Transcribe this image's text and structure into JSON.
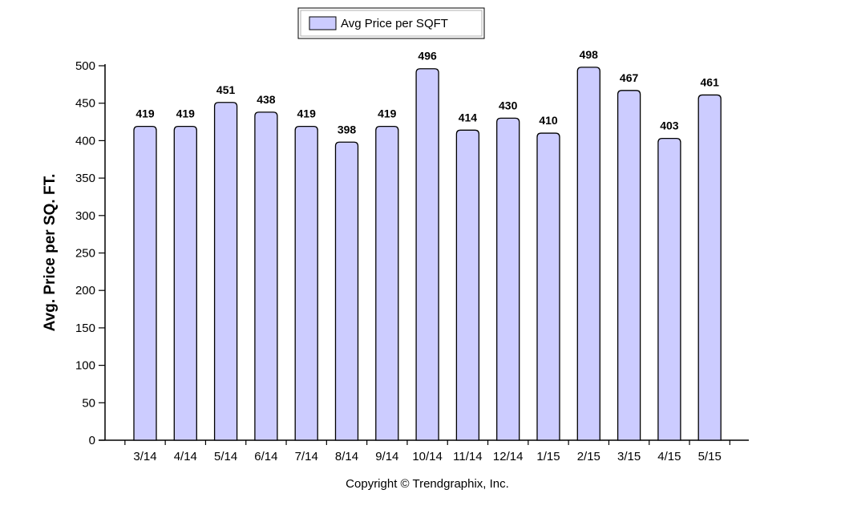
{
  "chart_data": {
    "type": "bar",
    "categories": [
      "3/14",
      "4/14",
      "5/14",
      "6/14",
      "7/14",
      "8/14",
      "9/14",
      "10/14",
      "11/14",
      "12/14",
      "1/15",
      "2/15",
      "3/15",
      "4/15",
      "5/15"
    ],
    "series": [
      {
        "name": "Avg Price per SQFT",
        "values": [
          419,
          419,
          451,
          438,
          419,
          398,
          419,
          496,
          414,
          430,
          410,
          498,
          467,
          403,
          461
        ]
      }
    ],
    "ylabel": "Avg. Price per SQ. FT.",
    "xlabel": "",
    "ylim": [
      0,
      500
    ],
    "yticks": [
      0,
      50,
      100,
      150,
      200,
      250,
      300,
      350,
      400,
      450,
      500
    ],
    "grid": false,
    "legend_position": "top-left",
    "data_labels": true,
    "colors": {
      "bar_fill": "#ccccff",
      "bar_stroke": "#000000",
      "axis": "#000000"
    }
  },
  "footer": {
    "copyright": "Copyright © Trendgraphix, Inc."
  }
}
